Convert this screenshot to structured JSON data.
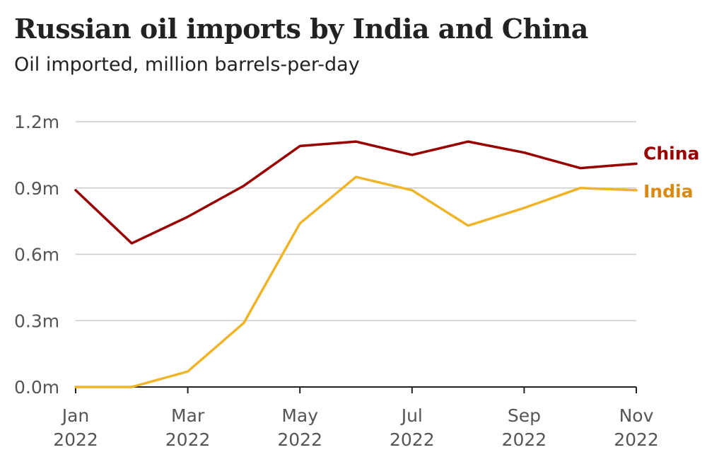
{
  "chart_data": {
    "type": "line",
    "title": "Russian oil imports by India and China",
    "subtitle": "Oil imported, million barrels-per-day",
    "xlabel": "",
    "ylabel": "",
    "x": [
      "Jan 2022",
      "Feb 2022",
      "Mar 2022",
      "Apr 2022",
      "May 2022",
      "Jun 2022",
      "Jul 2022",
      "Aug 2022",
      "Sep 2022",
      "Oct 2022",
      "Nov 2022"
    ],
    "ylim": [
      0,
      1.2
    ],
    "y_ticks": [
      {
        "value": 1.2,
        "label": "1.2m"
      },
      {
        "value": 0.9,
        "label": "0.9m"
      },
      {
        "value": 0.6,
        "label": "0.6m"
      },
      {
        "value": 0.3,
        "label": "0.3m"
      },
      {
        "value": 0.0,
        "label": "0.0m"
      }
    ],
    "x_ticks": [
      {
        "index": 0,
        "month": "Jan",
        "year": "2022"
      },
      {
        "index": 2,
        "month": "Mar",
        "year": "2022"
      },
      {
        "index": 4,
        "month": "May",
        "year": "2022"
      },
      {
        "index": 6,
        "month": "Jul",
        "year": "2022"
      },
      {
        "index": 8,
        "month": "Sep",
        "year": "2022"
      },
      {
        "index": 10,
        "month": "Nov",
        "year": "2022"
      }
    ],
    "grid": true,
    "legend": "direct labels at line ends",
    "series": [
      {
        "name": "China",
        "color": "#990000",
        "values": [
          0.89,
          0.65,
          0.77,
          0.91,
          1.09,
          1.11,
          1.05,
          1.11,
          1.06,
          0.99,
          1.01
        ]
      },
      {
        "name": "India",
        "color": "#f0b428",
        "values": [
          0.0,
          0.0,
          0.07,
          0.29,
          0.74,
          0.95,
          0.89,
          0.73,
          0.81,
          0.9,
          0.89
        ]
      }
    ],
    "label_colors": {
      "China": "#990000",
      "India": "#d98a10"
    }
  }
}
